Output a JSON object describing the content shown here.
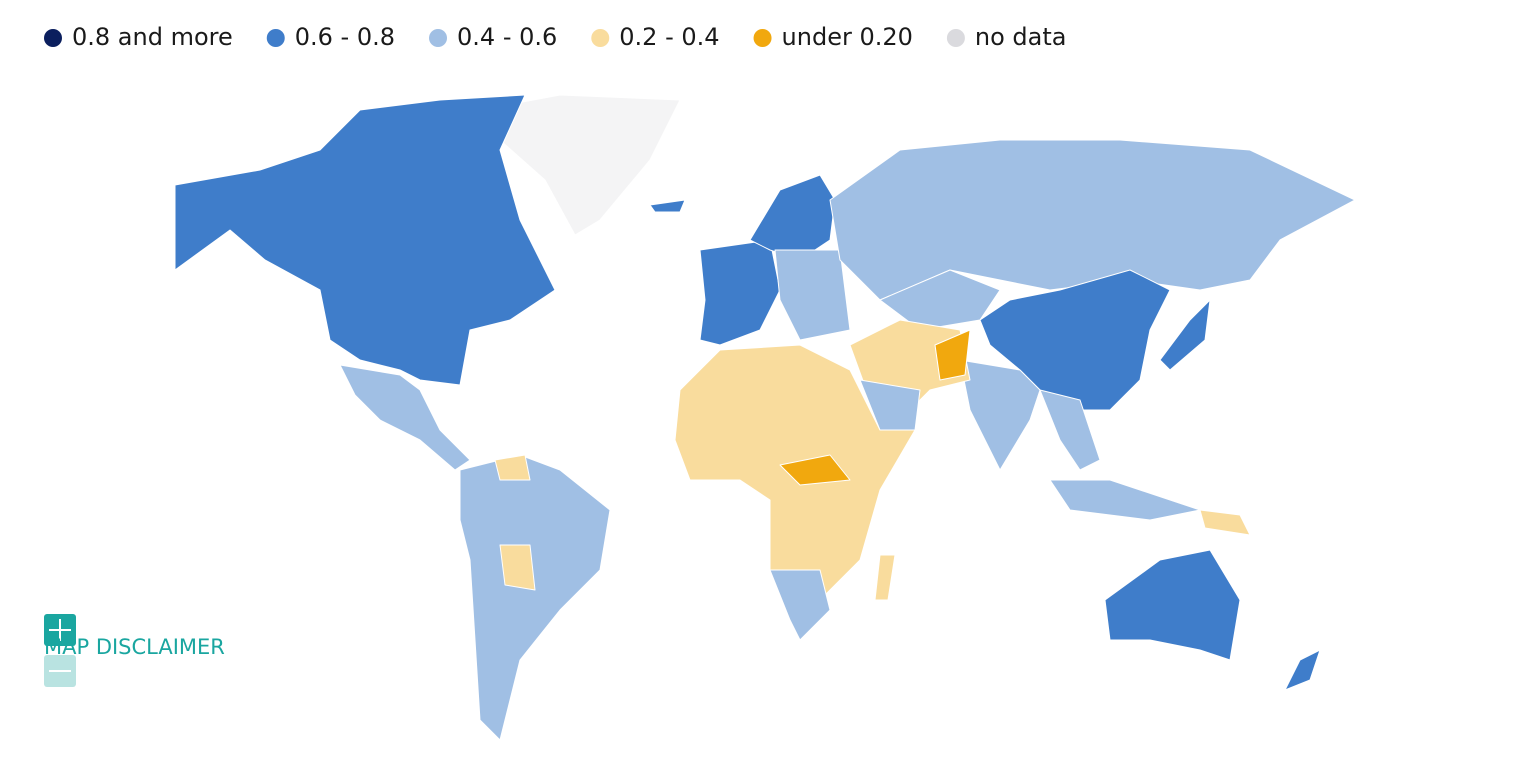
{
  "legend": {
    "items": [
      {
        "label": "0.8 and more",
        "color": "#0b1f5e"
      },
      {
        "label": "0.6 - 0.8",
        "color": "#3f7dca"
      },
      {
        "label": "0.4 - 0.6",
        "color": "#a0bfe4"
      },
      {
        "label": "0.2 - 0.4",
        "color": "#f9dc9d"
      },
      {
        "label": "under 0.20",
        "color": "#f1a80e"
      },
      {
        "label": "no data",
        "color": "#dadade"
      }
    ]
  },
  "map_disclaimer": "MAP DISCLAIMER"
}
